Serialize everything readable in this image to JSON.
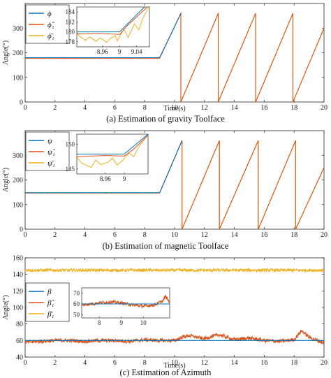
{
  "colors": {
    "truth": "#0072BD",
    "estimate": "#D95319",
    "measured": "#EDB120"
  },
  "chart_data": [
    {
      "type": "line",
      "caption": "(a) Estimation of gravity Toolface",
      "xlabel": "Time(s)",
      "ylabel": "Angle(°)",
      "xlim": [
        0,
        20
      ],
      "ylim": [
        0,
        400
      ],
      "xticks": [
        "0",
        "2",
        "4",
        "6",
        "8",
        "10",
        "12",
        "14",
        "16",
        "18",
        "20"
      ],
      "yticks": [
        "0",
        "100",
        "200",
        "300"
      ],
      "grid": false,
      "legend_position": "top-left",
      "legend": [
        "ϕ",
        "ϕ̂₁",
        "ϕ̄₁"
      ],
      "series": [
        {
          "name": "ϕ",
          "x": [
            0,
            9,
            10.42
          ],
          "y": [
            180,
            180,
            360
          ]
        },
        {
          "name": "ϕ̂₁",
          "x": [
            0,
            9,
            10.42,
            10.42,
            12.92,
            12.92,
            15.42,
            15.42,
            17.92,
            17.92,
            20
          ],
          "y": [
            178,
            178,
            360,
            0,
            360,
            0,
            360,
            0,
            360,
            0,
            300
          ]
        },
        {
          "name": "ϕ̄₁",
          "x": [
            0,
            9,
            10.42,
            10.42,
            12.92,
            12.92,
            15.42,
            15.42,
            17.92,
            17.92,
            20
          ],
          "y": [
            178,
            178,
            360,
            0,
            360,
            0,
            360,
            0,
            360,
            0,
            300
          ]
        }
      ],
      "inset": {
        "xlim": [
          8.9,
          9.07
        ],
        "ylim": [
          177,
          185
        ],
        "xticks": [
          "8.96",
          "9",
          "9.04"
        ],
        "yticks": [
          "178",
          "180",
          "182",
          "184"
        ],
        "series": [
          {
            "name": "ϕ",
            "x": [
              8.9,
              9.0,
              9.07
            ],
            "y": [
              180,
              180,
              186
            ]
          },
          {
            "name": "ϕ̂₁",
            "x": [
              8.9,
              8.95,
              9.0,
              9.02,
              9.05,
              9.07
            ],
            "y": [
              179.6,
              179.7,
              179.5,
              181.4,
              183.8,
              185.4
            ]
          },
          {
            "name": "ϕ̄₁",
            "x": [
              8.9,
              8.905,
              8.92,
              8.93,
              8.945,
              8.955,
              8.97,
              8.98,
              8.99,
              8.995,
              9.01,
              9.02,
              9.035,
              9.045,
              9.055,
              9.065,
              9.07
            ],
            "y": [
              180.2,
              179.2,
              178.3,
              179.0,
              178.1,
              178.8,
              177.9,
              178.8,
              179.2,
              178.2,
              180.6,
              178.9,
              181.6,
              180.4,
              182.8,
              184.4,
              185.2
            ]
          }
        ]
      }
    },
    {
      "type": "line",
      "caption": "(b) Estimation of magnetic Toolface",
      "xlabel": "",
      "ylabel": "Angle(°)",
      "xlim": [
        0,
        20
      ],
      "ylim": [
        0,
        400
      ],
      "xticks": [
        "0",
        "2",
        "4",
        "6",
        "8",
        "10",
        "12",
        "14",
        "16",
        "18",
        "20"
      ],
      "yticks": [
        "0",
        "100",
        "200",
        "300"
      ],
      "grid": false,
      "legend_position": "top-left",
      "legend": [
        "ψ",
        "ψ̂₁",
        "ψ̄₁"
      ],
      "series": [
        {
          "name": "ψ",
          "x": [
            0,
            9,
            10.5
          ],
          "y": [
            148,
            148,
            360
          ]
        },
        {
          "name": "ψ̂₁",
          "x": [
            0,
            9,
            10.5,
            10.5,
            13.0,
            13.0,
            15.6,
            15.6,
            18.1,
            18.1,
            20
          ],
          "y": [
            147,
            147,
            360,
            0,
            360,
            0,
            360,
            0,
            360,
            0,
            250
          ]
        },
        {
          "name": "ψ̄₁",
          "x": [
            0,
            9,
            10.5,
            10.5,
            13.0,
            13.0,
            15.6,
            15.6,
            18.1,
            18.1,
            20
          ],
          "y": [
            147,
            147,
            360,
            0,
            360,
            0,
            360,
            0,
            360,
            0,
            250
          ]
        }
      ],
      "inset": {
        "xlim": [
          8.9,
          9.05
        ],
        "ylim": [
          144,
          152
        ],
        "xticks": [
          "8.96",
          "9"
        ],
        "yticks": [
          "145",
          "150"
        ],
        "series": [
          {
            "name": "ψ",
            "x": [
              8.9,
              9.0,
              9.05
            ],
            "y": [
              148,
              148,
              152
            ]
          },
          {
            "name": "ψ̂₁",
            "x": [
              8.9,
              8.96,
              9.0,
              9.02,
              9.05
            ],
            "y": [
              147.5,
              147.7,
              147.6,
              149.0,
              151.8
            ]
          },
          {
            "name": "ψ̄₁",
            "x": [
              8.9,
              8.91,
              8.93,
              8.94,
              8.95,
              8.965,
              8.975,
              8.985,
              8.995,
              9.01,
              9.02,
              9.03,
              9.04,
              9.05
            ],
            "y": [
              147.4,
              146.2,
              145.3,
              146.8,
              145.9,
              146.3,
              147.2,
              145.8,
              146.6,
              148.2,
              147.5,
              149.4,
              150.6,
              152.0
            ]
          }
        ]
      }
    },
    {
      "type": "line",
      "caption": "(c) Estimation of Azimuth",
      "xlabel": "Time(s)",
      "ylabel": "Angle(°)",
      "xlim": [
        0,
        20
      ],
      "ylim": [
        40,
        160
      ],
      "xticks": [
        "0",
        "2",
        "4",
        "6",
        "8",
        "10",
        "12",
        "14",
        "16",
        "18",
        "20"
      ],
      "yticks": [
        "40",
        "60",
        "80",
        "100",
        "120",
        "140",
        "160"
      ],
      "grid": false,
      "legend_position": "middle-left",
      "legend": [
        "β",
        "β̂₁",
        "β̄₁"
      ],
      "series": [
        {
          "name": "β",
          "constant": 60
        },
        {
          "name": "β̂₁",
          "anchors_x": [
            0,
            1,
            2,
            3,
            4,
            5,
            6,
            7,
            8,
            9,
            10,
            10.5,
            11,
            12,
            12.5,
            13,
            14,
            15,
            16,
            17,
            18,
            18.5,
            19,
            20
          ],
          "anchors_y": [
            58,
            59,
            60,
            60,
            59,
            60,
            60,
            59,
            61,
            60,
            60,
            64,
            66,
            62,
            65,
            67,
            61,
            63,
            60,
            59,
            61,
            72,
            64,
            57
          ],
          "noise": 2.2
        },
        {
          "name": "β̄₁",
          "mean": 145,
          "noise": 1.8
        }
      ],
      "inset": {
        "xlim": [
          7.2,
          11.2
        ],
        "ylim": [
          47,
          75
        ],
        "xticks": [
          "8",
          "9",
          "10"
        ],
        "yticks": [
          "50",
          "60",
          "70"
        ],
        "series": [
          {
            "name": "β",
            "constant": 60
          },
          {
            "name": "β̂₁",
            "anchors_x": [
              7.2,
              8,
              8.5,
              9,
              9.5,
              10,
              10.5,
              10.9,
              11,
              11.2
            ],
            "anchors_y": [
              59,
              61,
              62,
              61,
              59,
              58,
              59,
              63,
              67,
              62
            ],
            "noise": 1.5
          }
        ]
      }
    }
  ]
}
